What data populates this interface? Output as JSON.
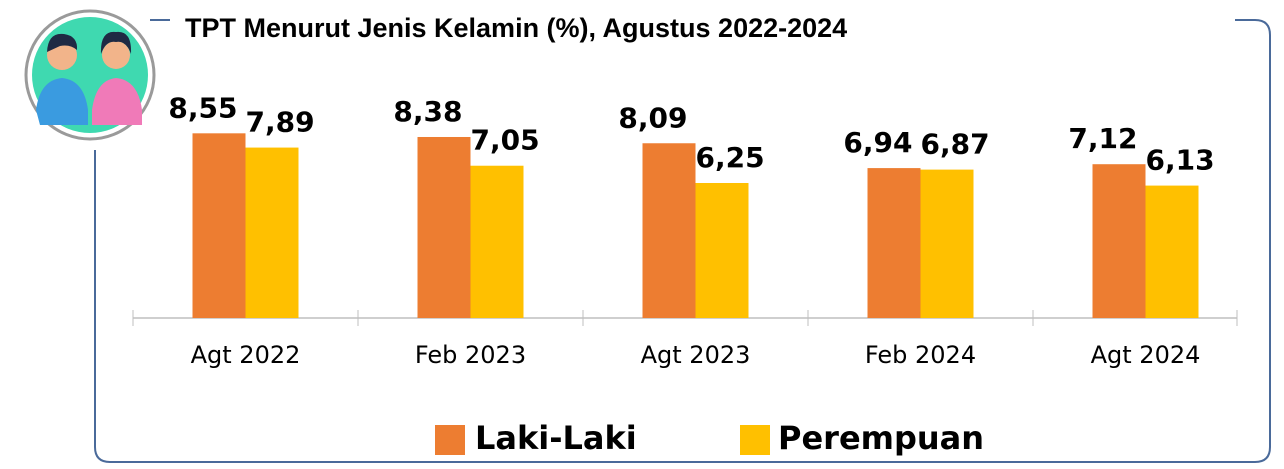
{
  "chart_data": {
    "type": "bar",
    "title": "TPT Menurut Jenis Kelamin (%), Agustus 2022-2024",
    "categories": [
      "Agt 2022",
      "Feb 2023",
      "Agt 2023",
      "Feb 2024",
      "Agt 2024"
    ],
    "series": [
      {
        "name": "Laki-Laki",
        "color": "#ED7D31",
        "values": [
          8.55,
          8.38,
          8.09,
          6.94,
          7.12
        ],
        "value_labels": [
          "8,55",
          "8,38",
          "8,09",
          "6,94",
          "7,12"
        ]
      },
      {
        "name": "Perempuan",
        "color": "#FFC000",
        "values": [
          7.89,
          7.05,
          6.25,
          6.87,
          6.13
        ],
        "value_labels": [
          "7,89",
          "7,05",
          "6,25",
          "6,87",
          "6,13"
        ]
      }
    ]
  }
}
